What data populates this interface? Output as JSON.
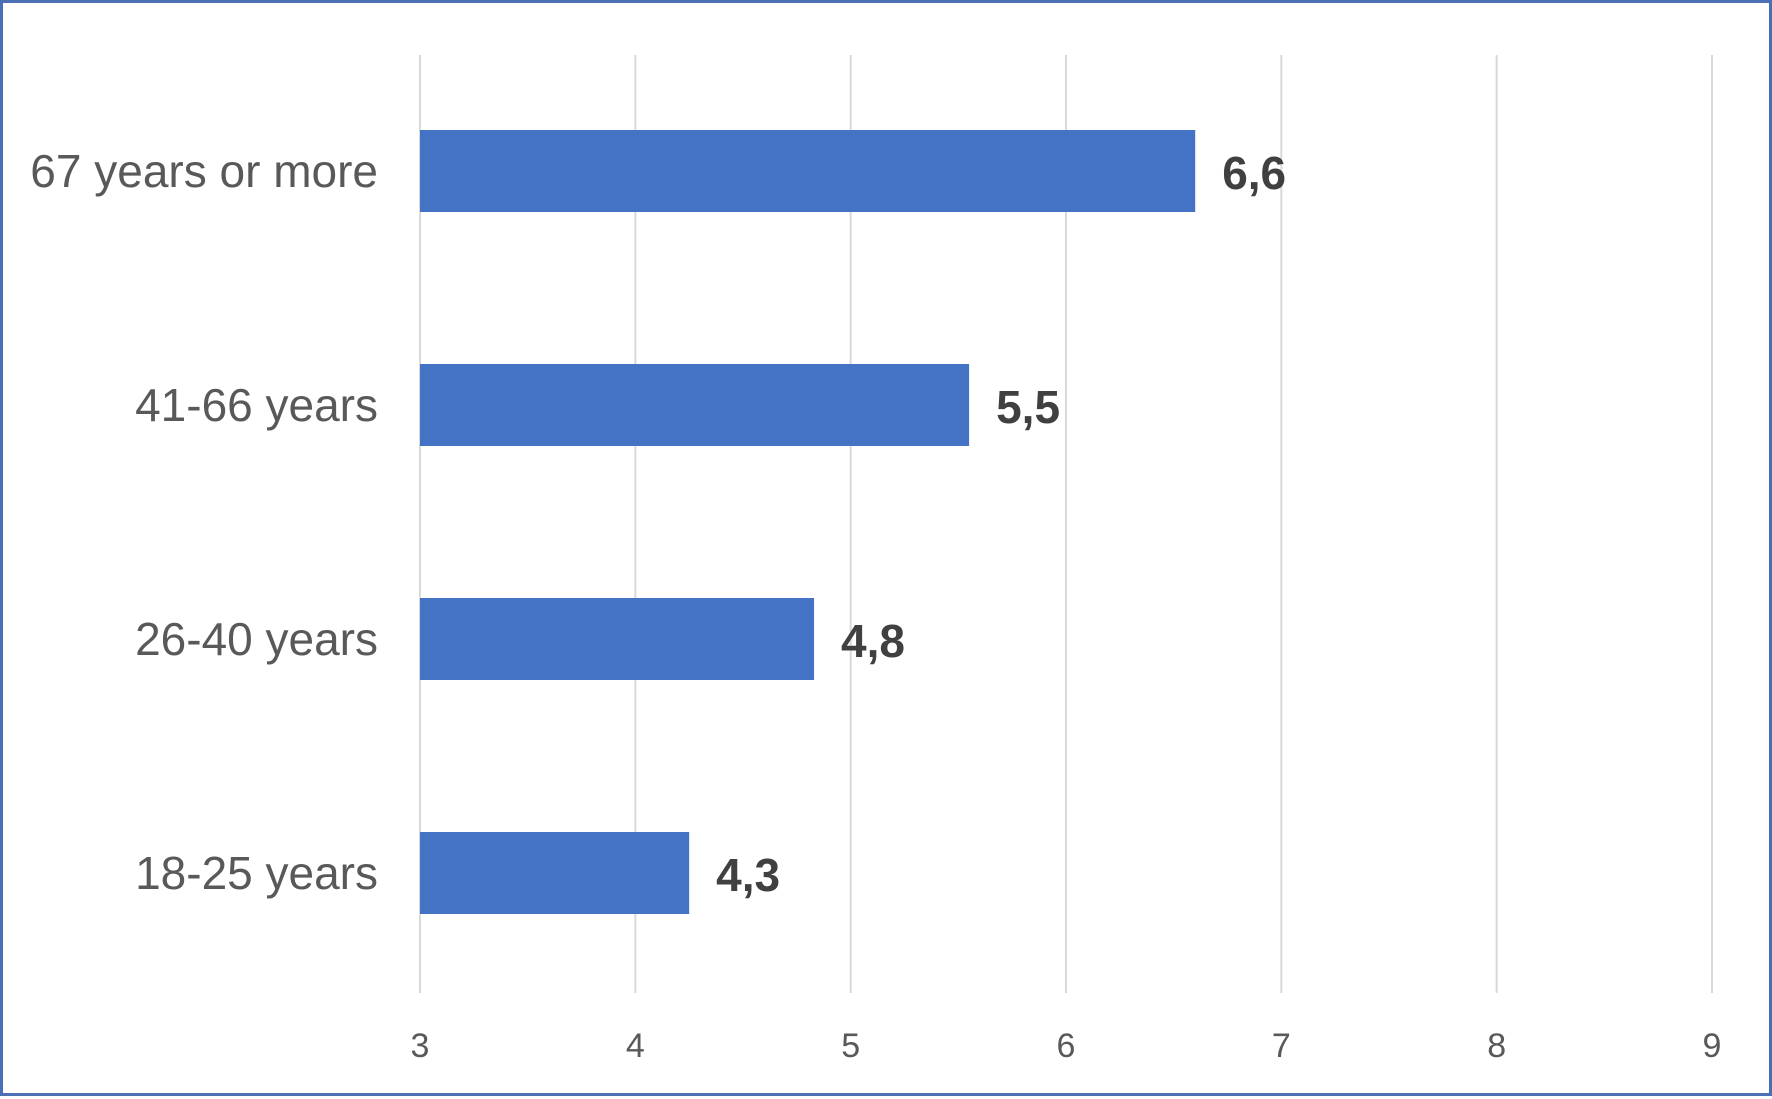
{
  "chart_data": {
    "type": "bar",
    "orientation": "horizontal",
    "categories": [
      "67 years or more",
      "41-66 years",
      "26-40 years",
      "18-25 years"
    ],
    "values": [
      6.6,
      5.55,
      4.83,
      4.25
    ],
    "value_labels": [
      "6,6",
      "5,5",
      "4,8",
      "4,3"
    ],
    "xlim": [
      3,
      9
    ],
    "x_ticks": [
      "3",
      "4",
      "5",
      "6",
      "7",
      "8",
      "9"
    ],
    "grid": "vertical",
    "legend": "none",
    "colors": {
      "bar": "#4472c4",
      "grid": "#d9d9d9",
      "border": "#4a6fb5"
    }
  }
}
